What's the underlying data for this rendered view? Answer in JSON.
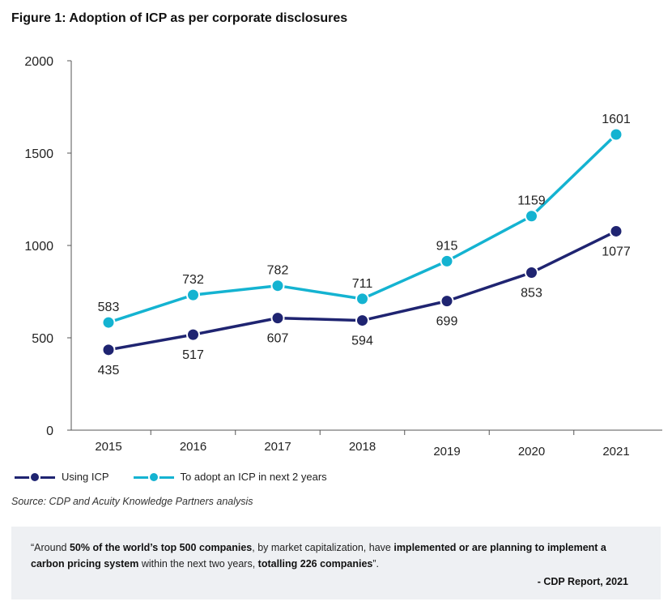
{
  "figure_title": "Figure 1: Adoption of ICP as per corporate disclosures",
  "colors": {
    "using": "#1f2471",
    "adopt": "#14b3d1",
    "axis": "#555555",
    "quote_bg": "#eef0f3"
  },
  "legend": {
    "using": "Using ICP",
    "adopt": "To adopt an ICP in next 2 years"
  },
  "source": "Source: CDP and Acuity Knowledge Partners analysis",
  "quote": {
    "p1": "“Around ",
    "b1": "50% of the world’s top 500 companies",
    "p2": ", by market capitalization, have ",
    "b2": "implemented or are planning to implement a carbon pricing system",
    "p3": " within the next two years, ",
    "b3": "totalling 226 companies",
    "p4": "”.",
    "attribution": "- CDP Report, 2021"
  },
  "chart_data": {
    "type": "line",
    "title": "Figure 1: Adoption of ICP as per corporate disclosures",
    "xlabel": "",
    "ylabel": "",
    "categories": [
      "2015",
      "2016",
      "2017",
      "2018",
      "2019",
      "2020",
      "2021"
    ],
    "series": [
      {
        "name": "Using ICP",
        "values": [
          435,
          517,
          607,
          594,
          699,
          853,
          1077
        ],
        "label_position": "below"
      },
      {
        "name": "To adopt an ICP in next 2 years",
        "values": [
          583,
          732,
          782,
          711,
          915,
          1159,
          1601
        ],
        "label_position": "above"
      }
    ],
    "ylim": [
      0,
      2000
    ],
    "yticks": [
      0,
      500,
      1000,
      1500,
      2000
    ],
    "grid": false,
    "legend_position": "bottom-left"
  }
}
